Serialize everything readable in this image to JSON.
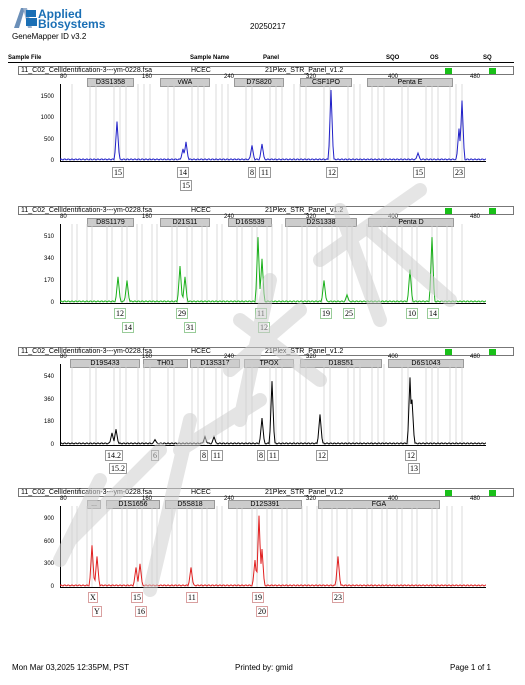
{
  "header": {
    "brand_line1": "Applied",
    "brand_line2": "Biosystems",
    "app_version": "GeneMapper ID v3.2",
    "date": "20250217",
    "col_sample_file": "Sample File",
    "col_sample_name": "Sample Name",
    "col_panel": "Panel",
    "col_sqo": "SQO",
    "col_os": "OS",
    "col_sq": "SQ"
  },
  "panels": [
    {
      "file": "11_C02_CellIdentification-3---ym-0228.fsa",
      "name": "HCEC",
      "panel": "21Plex_STR_Panel_v1.2",
      "color": "#2020c8",
      "markers": [
        "D3S1358",
        "vWA",
        "D7S820",
        "CSF1PO",
        "Penta E"
      ],
      "yticks": [
        "1500",
        "1000",
        "500",
        "0"
      ],
      "alleles": [
        "15",
        "14",
        "15",
        "8",
        "11",
        "12",
        "15",
        "23"
      ]
    },
    {
      "file": "11_C02_CellIdentification-3---ym-0228.fsa",
      "name": "HCEC",
      "panel": "21Plex_STR_Panel_v1.2",
      "color": "#19b019",
      "markers": [
        "D8S1179",
        "D21S11",
        "D16S539",
        "D2S1338",
        "Penta D"
      ],
      "yticks": [
        "510",
        "340",
        "170",
        "0"
      ],
      "alleles": [
        "12",
        "14",
        "29",
        "31",
        "11",
        "12",
        "19",
        "25",
        "10",
        "14"
      ]
    },
    {
      "file": "11_C02_CellIdentification-3---ym-0228.fsa",
      "name": "HCEC",
      "panel": "21Plex_STR_Panel_v1.2",
      "color": "#000000",
      "markers": [
        "D19S433",
        "TH01",
        "D13S317",
        "TPOX",
        "D18S51",
        "D6S1043"
      ],
      "yticks": [
        "540",
        "360",
        "180",
        "0"
      ],
      "alleles": [
        "14.2",
        "15.2",
        "6",
        "8",
        "11",
        "8",
        "11",
        "12",
        "12",
        "13"
      ]
    },
    {
      "file": "11_C02_CellIdentification-3---ym-0228.fsa",
      "name": "HCEC",
      "panel": "21Plex_STR_Panel_v1.2",
      "color": "#e02020",
      "markers": [
        "...",
        "D1S1656",
        "D5S818",
        "D12S391",
        "FGA"
      ],
      "yticks": [
        "900",
        "600",
        "300",
        "0"
      ],
      "alleles": [
        "X",
        "Y",
        "15",
        "16",
        "11",
        "19",
        "20",
        "23"
      ]
    }
  ],
  "xticks": [
    "80",
    "160",
    "240",
    "320",
    "400",
    "480"
  ],
  "footer": {
    "date": "Mon Mar 03,2025 12:35PM, PST",
    "printed_by": "Printed by: gmid",
    "page": "Page 1 of 1"
  },
  "status_color": "#19c019"
}
